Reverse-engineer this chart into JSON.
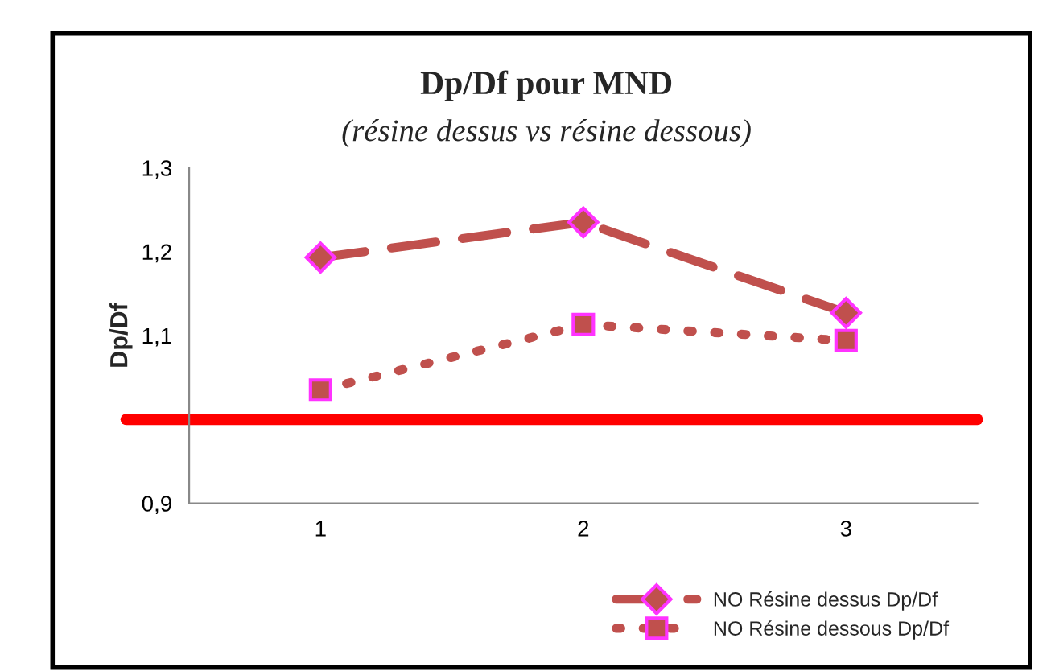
{
  "chart_data": {
    "type": "line",
    "title": "Dp/Df pour MND",
    "subtitle": "(résine dessus vs résine dessous)",
    "ylabel": "Dp/Df",
    "categories": [
      "1",
      "2",
      "3"
    ],
    "series": [
      {
        "name": "NO Résine dessus Dp/Df",
        "color": "#c0504d",
        "values": [
          1.193,
          1.235,
          1.127
        ],
        "marker": "diamond",
        "line_style": "dashed"
      },
      {
        "name": "NO Résine dessous Dp/Df",
        "color": "#c0504d",
        "values": [
          1.035,
          1.113,
          1.094
        ],
        "marker": "square",
        "line_style": "dotted"
      }
    ],
    "ylim": [
      0.9,
      1.3
    ],
    "yticks": [
      {
        "value": 0.9,
        "label": "0,9"
      },
      {
        "value": 1.0,
        "label": null
      },
      {
        "value": 1.1,
        "label": "1,1"
      },
      {
        "value": 1.2,
        "label": "1,2"
      },
      {
        "value": 1.3,
        "label": "1,3"
      }
    ],
    "ref_lines": [
      {
        "axis": "y",
        "value": 1.0,
        "color": "#ff0000",
        "line_style": "solid"
      }
    ],
    "grid": false,
    "legend": "bottom right"
  }
}
